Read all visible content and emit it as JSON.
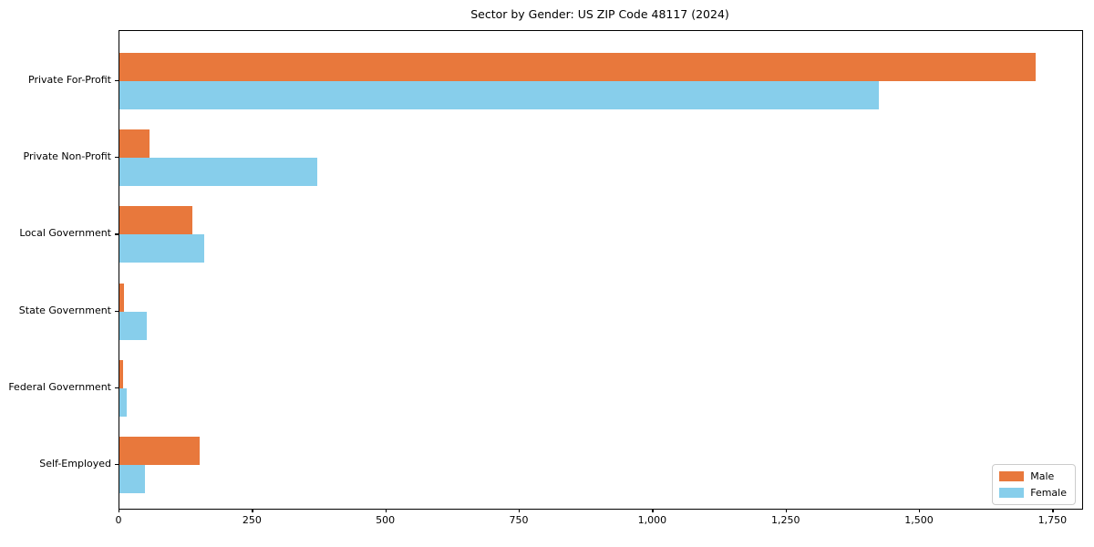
{
  "chart_data": {
    "type": "bar",
    "orientation": "horizontal",
    "title": "Sector by Gender: US ZIP Code 48117 (2024)",
    "categories": [
      "Private For-Profit",
      "Private Non-Profit",
      "Local Government",
      "State Government",
      "Federal Government",
      "Self-Employed"
    ],
    "series": [
      {
        "name": "Male",
        "color": "#e8783c",
        "values": [
          1717,
          57,
          137,
          9,
          7,
          150
        ]
      },
      {
        "name": "Female",
        "color": "#87ceeb",
        "values": [
          1423,
          370,
          159,
          52,
          14,
          48
        ]
      }
    ],
    "xlabel": "",
    "ylabel": "",
    "xlim": [
      0,
      1804
    ],
    "x_ticks": [
      0,
      250,
      500,
      750,
      1000,
      1250,
      1500,
      1750
    ],
    "x_tick_labels": [
      "0",
      "250",
      "500",
      "750",
      "1,000",
      "1,250",
      "1,500",
      "1,750"
    ],
    "grid": false,
    "legend_position": "lower right"
  }
}
